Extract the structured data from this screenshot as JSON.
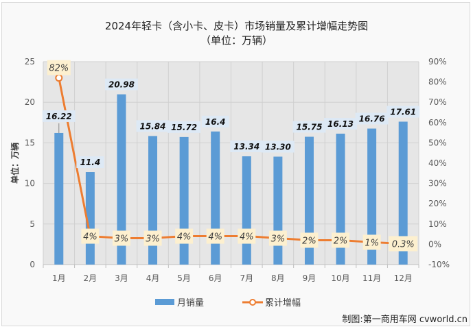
{
  "header": {
    "title_line1": "2024年轻卡（含小卡、皮卡）市场销量及累计增幅走势图",
    "title_line2": "（单位：万辆）"
  },
  "credit": "制图:第一商用车网 cvworld.cn",
  "colors": {
    "bar": "#5b9bd5",
    "line": "#ed7d31",
    "plot_bg": "#e6e6e6",
    "bar_label_bg": "#dde9f5",
    "line_label_bg": "#fdf0cf"
  },
  "chart_data": {
    "type": "bar+line",
    "title": "2024年轻卡（含小卡、皮卡）市场销量及累计增幅走势图（单位：万辆）",
    "categories": [
      "1月",
      "2月",
      "3月",
      "4月",
      "5月",
      "6月",
      "7月",
      "8月",
      "9月",
      "10月",
      "11月",
      "12月"
    ],
    "series": [
      {
        "name": "月销量",
        "type": "bar",
        "axis": "left",
        "values": [
          16.22,
          11.4,
          20.98,
          15.84,
          15.72,
          16.4,
          13.34,
          13.3,
          15.75,
          16.13,
          16.76,
          17.61
        ],
        "labels": [
          "16.22",
          "11.4",
          "20.98",
          "15.84",
          "15.72",
          "16.4",
          "13.34",
          "13.30",
          "15.75",
          "16.13",
          "16.76",
          "17.61"
        ]
      },
      {
        "name": "累计增幅",
        "type": "line",
        "axis": "right",
        "values": [
          82,
          4,
          3,
          3,
          4,
          4,
          4,
          3,
          2,
          2,
          1,
          0.3
        ],
        "labels": [
          "82%",
          "4%",
          "3%",
          "3%",
          "4%",
          "4%",
          "4%",
          "3%",
          "2%",
          "2%",
          "1%",
          "0.3%"
        ]
      }
    ],
    "ylabel": "单位：万辆",
    "ylim": [
      0,
      25
    ],
    "yticks": [
      "0",
      "5",
      "10",
      "15",
      "20",
      "25"
    ],
    "y2lim": [
      -10,
      90
    ],
    "y2ticks": [
      "-10%",
      "0%",
      "10%",
      "20%",
      "30%",
      "40%",
      "50%",
      "60%",
      "70%",
      "80%",
      "90%"
    ],
    "grid": true,
    "legend_position": "bottom",
    "legend": [
      "月销量",
      "累计增幅"
    ]
  }
}
